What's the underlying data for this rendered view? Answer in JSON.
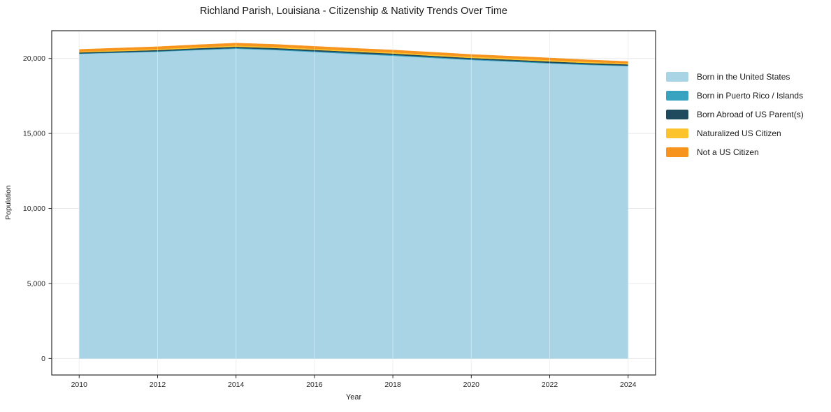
{
  "page": {
    "background": "#ffffff"
  },
  "chart": {
    "title": "Richland Parish, Louisiana - Citizenship & Nativity Trends Over Time",
    "xlabel": "Year",
    "ylabel": "Population"
  },
  "chart_data": {
    "type": "area",
    "stacked": true,
    "title": "Richland Parish, Louisiana - Citizenship & Nativity Trends Over Time",
    "xlabel": "Year",
    "ylabel": "Population",
    "x": [
      2010,
      2011,
      2012,
      2013,
      2014,
      2015,
      2016,
      2017,
      2018,
      2019,
      2020,
      2021,
      2022,
      2023,
      2024
    ],
    "series": [
      {
        "name": "Born in the United States",
        "color": "#A8D4E6",
        "values": [
          20310,
          20380,
          20450,
          20560,
          20650,
          20560,
          20430,
          20300,
          20180,
          20040,
          19900,
          19790,
          19670,
          19570,
          19490
        ]
      },
      {
        "name": "Born in Puerto Rico / Islands",
        "color": "#38A3C1",
        "values": [
          25,
          30,
          35,
          40,
          45,
          50,
          55,
          60,
          60,
          55,
          50,
          50,
          45,
          40,
          40
        ]
      },
      {
        "name": "Born Abroad of US Parent(s)",
        "color": "#1F4A5E",
        "values": [
          70,
          75,
          80,
          85,
          90,
          90,
          90,
          90,
          90,
          85,
          85,
          85,
          90,
          85,
          80
        ]
      },
      {
        "name": "Naturalized US Citizen",
        "color": "#FCC32D",
        "values": [
          60,
          65,
          70,
          75,
          80,
          80,
          80,
          80,
          85,
          90,
          90,
          90,
          90,
          80,
          70
        ]
      },
      {
        "name": "Not a US Citizen",
        "color": "#F7941E",
        "values": [
          140,
          145,
          150,
          155,
          160,
          160,
          155,
          150,
          150,
          150,
          145,
          140,
          140,
          130,
          120
        ]
      }
    ],
    "xticks": [
      2010,
      2012,
      2014,
      2016,
      2018,
      2020,
      2022,
      2024
    ],
    "xtick_labels": [
      "2010",
      "2012",
      "2014",
      "2016",
      "2018",
      "2020",
      "2022",
      "2024"
    ],
    "yticks": [
      0,
      5000,
      10000,
      15000,
      20000
    ],
    "ytick_labels": [
      "0",
      "5,000",
      "10,000",
      "15,000",
      "20,000"
    ],
    "xlim": [
      2009.3,
      2024.7
    ],
    "ylim": [
      -1100,
      21850
    ],
    "grid": true,
    "legend_position": "right",
    "frame_color": "#2b2b2b",
    "grid_color": "#e8e8e8",
    "tick_text_color": "#262626"
  }
}
